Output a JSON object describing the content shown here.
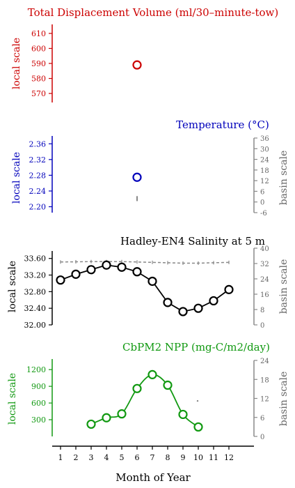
{
  "colors": {
    "displacement": "#cc0000",
    "temperature": "#0000bb",
    "salinity": "#000000",
    "npp": "#119911",
    "basin": "#888888"
  },
  "labels": {
    "local_scale": "local scale",
    "basin_scale": "basin scale"
  },
  "chart_data": [
    {
      "type": "scatter",
      "title": "Total Displacement Volume (ml/30–minute-tow)",
      "ylabel": "local scale",
      "ylim": [
        564,
        616
      ],
      "yticks": [
        570,
        580,
        590,
        600,
        610
      ],
      "series": [
        {
          "x": [
            6
          ],
          "values": [
            589
          ]
        }
      ]
    },
    {
      "type": "scatter",
      "title": "Temperature (°C)",
      "ylabel": "local scale",
      "y2label": "basin scale",
      "ylim": [
        2.185,
        2.38
      ],
      "yticks": [
        2.2,
        2.24,
        2.28,
        2.32,
        2.36
      ],
      "y2lim": [
        -6,
        36
      ],
      "y2ticks": [
        -6,
        0,
        6,
        12,
        18,
        24,
        30,
        36
      ],
      "series": [
        {
          "x": [
            6
          ],
          "values": [
            2.275
          ]
        },
        {
          "axis": "basin",
          "x": [
            6
          ],
          "low": [
            0.5
          ],
          "high": [
            3.3
          ]
        }
      ]
    },
    {
      "type": "line",
      "title": "Hadley-EN4 Salinity at 5 m",
      "ylabel": "local scale",
      "y2label": "basin scale",
      "ylim": [
        32.0,
        33.78
      ],
      "yticks": [
        32.0,
        32.4,
        32.8,
        33.2,
        33.6
      ],
      "y2lim": [
        0,
        40
      ],
      "y2ticks": [
        0,
        8,
        16,
        24,
        32,
        40
      ],
      "x": [
        1,
        2,
        3,
        4,
        5,
        6,
        7,
        8,
        9,
        10,
        11,
        12
      ],
      "series": [
        {
          "values": [
            33.08,
            33.22,
            33.33,
            33.44,
            33.39,
            33.28,
            33.05,
            32.54,
            32.32,
            32.4,
            32.58,
            32.85
          ]
        },
        {
          "axis": "basin",
          "values": [
            32.8,
            32.9,
            33.0,
            33.0,
            33.0,
            32.8,
            32.6,
            32.4,
            32.2,
            32.2,
            32.4,
            32.6
          ]
        }
      ]
    },
    {
      "type": "line",
      "title": "CbPM2 NPP (mg-C/m2/day)",
      "ylabel": "local scale",
      "y2label": "basin scale",
      "ylim": [
        0,
        1390
      ],
      "yticks": [
        300,
        600,
        900,
        1200
      ],
      "y2lim": [
        0,
        24
      ],
      "y2ticks": [
        0,
        6,
        12,
        18,
        24
      ],
      "x": [
        3,
        4,
        5,
        6,
        7,
        8,
        9,
        10
      ],
      "series": [
        {
          "values": [
            220,
            335,
            405,
            860,
            1110,
            920,
            395,
            170
          ]
        },
        {
          "axis": "basin",
          "x": [
            10
          ],
          "values": [
            11.2
          ]
        }
      ]
    }
  ],
  "xaxis": {
    "label": "Month of Year",
    "ticks": [
      "1",
      "2",
      "3",
      "4",
      "5",
      "6",
      "7",
      "8",
      "9",
      "10",
      "11",
      "12"
    ]
  }
}
